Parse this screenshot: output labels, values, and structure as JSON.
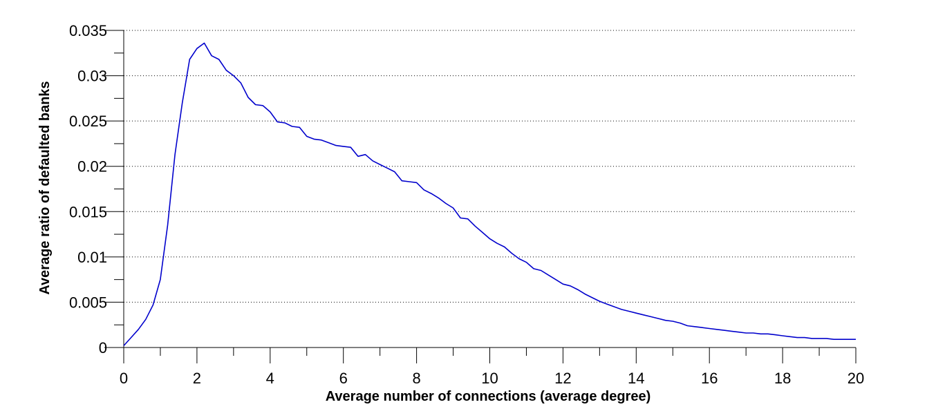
{
  "chart_data": {
    "type": "line",
    "title": "",
    "xlabel": "Average number of connections (average degree)",
    "ylabel": "Average ratio of defaulted banks",
    "xlim": [
      0,
      20
    ],
    "ylim": [
      0,
      0.035
    ],
    "x_ticks": [
      0,
      2,
      4,
      6,
      8,
      10,
      12,
      14,
      16,
      18,
      20
    ],
    "x_tick_labels": [
      "0",
      "2",
      "4",
      "6",
      "8",
      "10",
      "12",
      "14",
      "16",
      "18",
      "20"
    ],
    "y_ticks": [
      0,
      0.005,
      0.01,
      0.015,
      0.02,
      0.025,
      0.03,
      0.035
    ],
    "y_tick_labels": [
      "0",
      "0.005",
      "0.01",
      "0.015",
      "0.02",
      "0.025",
      "0.03",
      "0.035"
    ],
    "grid": "horizontal-dotted",
    "legend": "none",
    "line_color": "#0000cc",
    "series": [
      {
        "x": [
          0,
          0.2,
          0.4,
          0.6,
          0.8,
          1.0,
          1.2,
          1.4,
          1.6,
          1.8,
          2.0,
          2.2,
          2.4,
          2.6,
          2.8,
          3.0,
          3.2,
          3.4,
          3.6,
          3.8,
          4.0,
          4.2,
          4.4,
          4.6,
          4.8,
          5.0,
          5.2,
          5.4,
          5.6,
          5.8,
          6.0,
          6.2,
          6.4,
          6.6,
          6.8,
          7.0,
          7.2,
          7.4,
          7.6,
          7.8,
          8.0,
          8.2,
          8.4,
          8.6,
          8.8,
          9.0,
          9.2,
          9.4,
          9.6,
          9.8,
          10.0,
          10.2,
          10.4,
          10.6,
          10.8,
          11.0,
          11.2,
          11.4,
          11.6,
          11.8,
          12.0,
          12.2,
          12.4,
          12.6,
          12.8,
          13.0,
          13.2,
          13.4,
          13.6,
          13.8,
          14.0,
          14.2,
          14.4,
          14.6,
          14.8,
          15.0,
          15.2,
          15.4,
          15.6,
          15.8,
          16.0,
          16.2,
          16.4,
          16.6,
          16.8,
          17.0,
          17.2,
          17.4,
          17.6,
          17.8,
          18.0,
          18.2,
          18.4,
          18.6,
          18.8,
          19.0,
          19.2,
          19.4,
          19.6,
          19.8,
          20.0
        ],
        "values": [
          0.0002,
          0.0011,
          0.002,
          0.0031,
          0.0047,
          0.0075,
          0.0135,
          0.0213,
          0.027,
          0.0318,
          0.033,
          0.0336,
          0.0322,
          0.0318,
          0.0306,
          0.03,
          0.0292,
          0.0276,
          0.0268,
          0.0267,
          0.026,
          0.0249,
          0.0248,
          0.0244,
          0.0243,
          0.0233,
          0.023,
          0.0229,
          0.0226,
          0.0223,
          0.0222,
          0.0221,
          0.0211,
          0.0213,
          0.0206,
          0.0202,
          0.0198,
          0.0194,
          0.0184,
          0.0183,
          0.0182,
          0.0174,
          0.017,
          0.0165,
          0.0159,
          0.0154,
          0.0143,
          0.0142,
          0.0134,
          0.0127,
          0.012,
          0.0115,
          0.0111,
          0.0104,
          0.0098,
          0.0094,
          0.0087,
          0.0085,
          0.008,
          0.0075,
          0.007,
          0.0068,
          0.0064,
          0.0059,
          0.0055,
          0.0051,
          0.0048,
          0.0045,
          0.0042,
          0.004,
          0.0038,
          0.0036,
          0.0034,
          0.0032,
          0.003,
          0.0029,
          0.0027,
          0.0024,
          0.0023,
          0.0022,
          0.0021,
          0.002,
          0.0019,
          0.0018,
          0.0017,
          0.0016,
          0.0016,
          0.0015,
          0.0015,
          0.0014,
          0.0013,
          0.0012,
          0.0011,
          0.0011,
          0.001,
          0.001,
          0.001,
          0.0009,
          0.0009,
          0.0009,
          0.0009
        ]
      }
    ]
  }
}
